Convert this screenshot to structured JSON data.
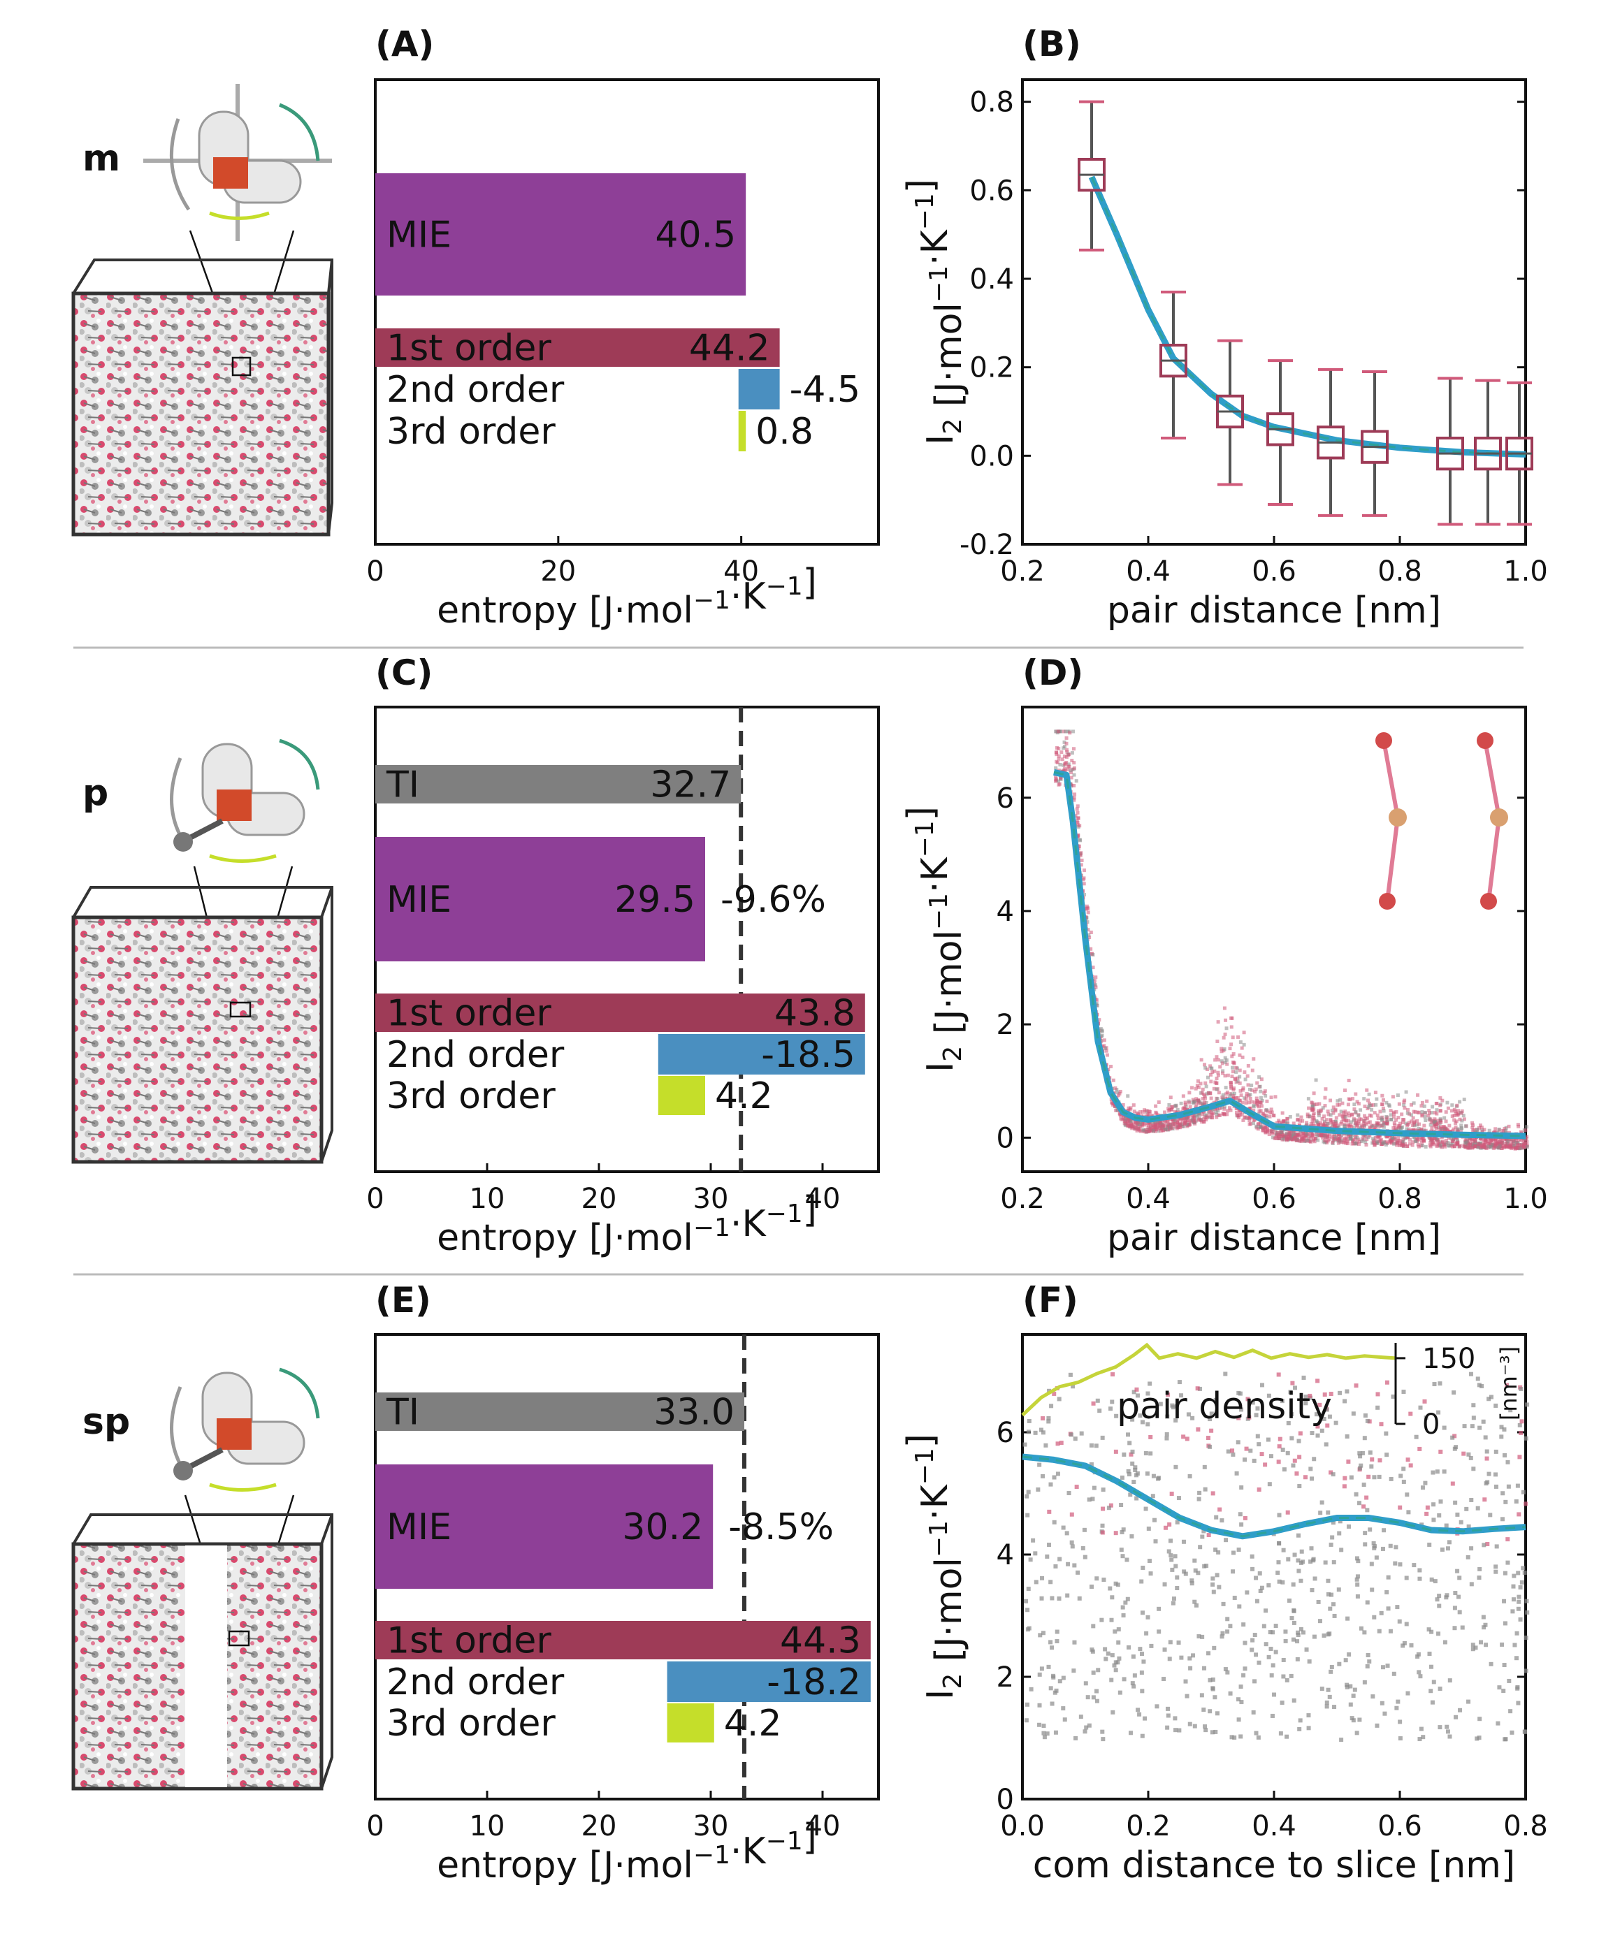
{
  "figure": {
    "row_labels": [
      "m",
      "p",
      "sp"
    ],
    "colors": {
      "mie": "#8e3f97",
      "ti": "#7f7f7f",
      "first": "#9e3b57",
      "second": "#4a8fc0",
      "third": "#c5de2a",
      "fit_blue": "#2f9ec9",
      "fit_green": "#2ea39a",
      "points_pink": "#d05a7a",
      "points_gray": "#8a8a8a",
      "pair_density": "#c5d43a",
      "separator": "#bbbbbb"
    }
  },
  "chart_data": [
    {
      "panel": "(A)",
      "type": "bar",
      "xlabel": "entropy [J·mol⁻¹·K⁻¹]",
      "xlim": [
        0,
        55
      ],
      "xticks": [
        0,
        20,
        40
      ],
      "bars": [
        {
          "name": "MIE",
          "start": 0,
          "end": 40.5,
          "label": "MIE",
          "value_label": "40.5",
          "color": "mie"
        },
        {
          "name": "1st order",
          "start": 0,
          "end": 44.2,
          "label": "1st order",
          "value_label": "44.2",
          "color": "first"
        },
        {
          "name": "2nd order",
          "start": 39.7,
          "end": 44.2,
          "label": "2nd order",
          "value_label": "-4.5",
          "color": "second"
        },
        {
          "name": "3rd order",
          "start": 39.7,
          "end": 40.5,
          "label": "3rd order",
          "value_label": "0.8",
          "color": "third"
        }
      ]
    },
    {
      "panel": "(B)",
      "type": "box",
      "xlabel": "pair distance [nm]",
      "ylabel": "I₂ [J·mol⁻¹·K⁻¹]",
      "xlim": [
        0.2,
        1.0
      ],
      "ylim": [
        -0.2,
        0.85
      ],
      "xticks": [
        0.2,
        0.4,
        0.6,
        0.8,
        1.0
      ],
      "yticks": [
        -0.2,
        0.0,
        0.2,
        0.4,
        0.6,
        0.8
      ],
      "boxes": [
        {
          "x": 0.31,
          "median": 0.635,
          "q1": 0.6,
          "q3": 0.67,
          "min": 0.465,
          "max": 0.8
        },
        {
          "x": 0.44,
          "median": 0.215,
          "q1": 0.18,
          "q3": 0.25,
          "min": 0.04,
          "max": 0.37
        },
        {
          "x": 0.53,
          "median": 0.1,
          "q1": 0.065,
          "q3": 0.135,
          "min": -0.065,
          "max": 0.26
        },
        {
          "x": 0.61,
          "median": 0.06,
          "q1": 0.025,
          "q3": 0.095,
          "min": -0.11,
          "max": 0.215
        },
        {
          "x": 0.69,
          "median": 0.03,
          "q1": -0.005,
          "q3": 0.065,
          "min": -0.135,
          "max": 0.195
        },
        {
          "x": 0.76,
          "median": 0.02,
          "q1": -0.015,
          "q3": 0.055,
          "min": -0.135,
          "max": 0.19
        },
        {
          "x": 0.88,
          "median": 0.005,
          "q1": -0.03,
          "q3": 0.04,
          "min": -0.155,
          "max": 0.175
        },
        {
          "x": 0.94,
          "median": 0.005,
          "q1": -0.03,
          "q3": 0.04,
          "min": -0.155,
          "max": 0.17
        },
        {
          "x": 0.99,
          "median": 0.005,
          "q1": -0.03,
          "q3": 0.04,
          "min": -0.155,
          "max": 0.165
        }
      ],
      "fit": {
        "x": [
          0.31,
          0.35,
          0.4,
          0.44,
          0.5,
          0.55,
          0.6,
          0.7,
          0.8,
          0.9,
          1.0
        ],
        "y": [
          0.63,
          0.5,
          0.33,
          0.22,
          0.14,
          0.09,
          0.065,
          0.035,
          0.018,
          0.008,
          0.003
        ]
      }
    },
    {
      "panel": "(C)",
      "type": "bar",
      "xlabel": "entropy [J·mol⁻¹·K⁻¹]",
      "xlim": [
        0,
        45
      ],
      "xticks": [
        0,
        10,
        20,
        30,
        40
      ],
      "ref_line": 32.7,
      "annotation": "-9.6%",
      "bars": [
        {
          "name": "TI",
          "start": 0,
          "end": 32.7,
          "label": "TI",
          "value_label": "32.7",
          "color": "ti"
        },
        {
          "name": "MIE",
          "start": 0,
          "end": 29.5,
          "label": "MIE",
          "value_label": "29.5",
          "color": "mie"
        },
        {
          "name": "1st order",
          "start": 0,
          "end": 43.8,
          "label": "1st order",
          "value_label": "43.8",
          "color": "first"
        },
        {
          "name": "2nd order",
          "start": 25.3,
          "end": 43.8,
          "label": "2nd order",
          "value_label": "-18.5",
          "color": "second"
        },
        {
          "name": "3rd order",
          "start": 25.3,
          "end": 29.5,
          "label": "3rd order",
          "value_label": "4.2",
          "color": "third"
        }
      ]
    },
    {
      "panel": "(D)",
      "type": "scatter",
      "xlabel": "pair distance [nm]",
      "ylabel": "I₂ [J·mol⁻¹·K⁻¹]",
      "xlim": [
        0.2,
        1.0
      ],
      "ylim": [
        -0.6,
        7.6
      ],
      "xticks": [
        0.2,
        0.4,
        0.6,
        0.8,
        1.0
      ],
      "yticks": [
        0,
        2,
        4,
        6
      ],
      "fit": {
        "x": [
          0.25,
          0.27,
          0.28,
          0.3,
          0.32,
          0.34,
          0.36,
          0.38,
          0.4,
          0.45,
          0.5,
          0.53,
          0.56,
          0.6,
          0.7,
          0.8,
          0.9,
          1.0
        ],
        "y": [
          6.45,
          6.4,
          5.6,
          3.5,
          1.7,
          0.8,
          0.45,
          0.35,
          0.32,
          0.4,
          0.55,
          0.65,
          0.45,
          0.2,
          0.12,
          0.08,
          0.05,
          0.03
        ]
      }
    },
    {
      "panel": "(E)",
      "type": "bar",
      "xlabel": "entropy [J·mol⁻¹·K⁻¹]",
      "xlim": [
        0,
        45
      ],
      "xticks": [
        0,
        10,
        20,
        30,
        40
      ],
      "ref_line": 33.0,
      "annotation": "-8.5%",
      "bars": [
        {
          "name": "TI",
          "start": 0,
          "end": 33.0,
          "label": "TI",
          "value_label": "33.0",
          "color": "ti"
        },
        {
          "name": "MIE",
          "start": 0,
          "end": 30.2,
          "label": "MIE",
          "value_label": "30.2",
          "color": "mie"
        },
        {
          "name": "1st order",
          "start": 0,
          "end": 44.3,
          "label": "1st order",
          "value_label": "44.3",
          "color": "first"
        },
        {
          "name": "2nd order",
          "start": 26.1,
          "end": 44.3,
          "label": "2nd order",
          "value_label": "-18.2",
          "color": "second"
        },
        {
          "name": "3rd order",
          "start": 26.1,
          "end": 30.3,
          "label": "3rd order",
          "value_label": "4.2",
          "color": "third"
        }
      ]
    },
    {
      "panel": "(F)",
      "type": "scatter",
      "xlabel": "com distance to slice [nm]",
      "ylabel": "I₂ [J·mol⁻¹·K⁻¹]",
      "xlim": [
        0.0,
        0.8
      ],
      "ylim": [
        0,
        7.6
      ],
      "xticks": [
        0.0,
        0.2,
        0.4,
        0.6,
        0.8
      ],
      "yticks": [
        0,
        2,
        4,
        6
      ],
      "fit": {
        "x": [
          0.0,
          0.05,
          0.1,
          0.15,
          0.2,
          0.25,
          0.3,
          0.35,
          0.4,
          0.45,
          0.5,
          0.55,
          0.6,
          0.65,
          0.7,
          0.75,
          0.8
        ],
        "y": [
          5.6,
          5.55,
          5.45,
          5.2,
          4.9,
          4.6,
          4.4,
          4.3,
          4.38,
          4.5,
          4.6,
          4.6,
          4.52,
          4.4,
          4.38,
          4.42,
          4.45
        ]
      },
      "inset": {
        "label": "pair density",
        "right_axis_ticks": [
          "150",
          "0"
        ],
        "right_axis_unit": "[nm⁻³]",
        "x": [
          0.0,
          0.03,
          0.06,
          0.09,
          0.12,
          0.15,
          0.18,
          0.2,
          0.22,
          0.25,
          0.28,
          0.31,
          0.34,
          0.37,
          0.4,
          0.43,
          0.46,
          0.49,
          0.52,
          0.55,
          0.58,
          0.6
        ],
        "y": [
          20,
          60,
          85,
          95,
          115,
          130,
          158,
          180,
          150,
          160,
          150,
          165,
          152,
          168,
          150,
          160,
          152,
          158,
          150,
          155,
          152,
          150
        ]
      }
    }
  ]
}
